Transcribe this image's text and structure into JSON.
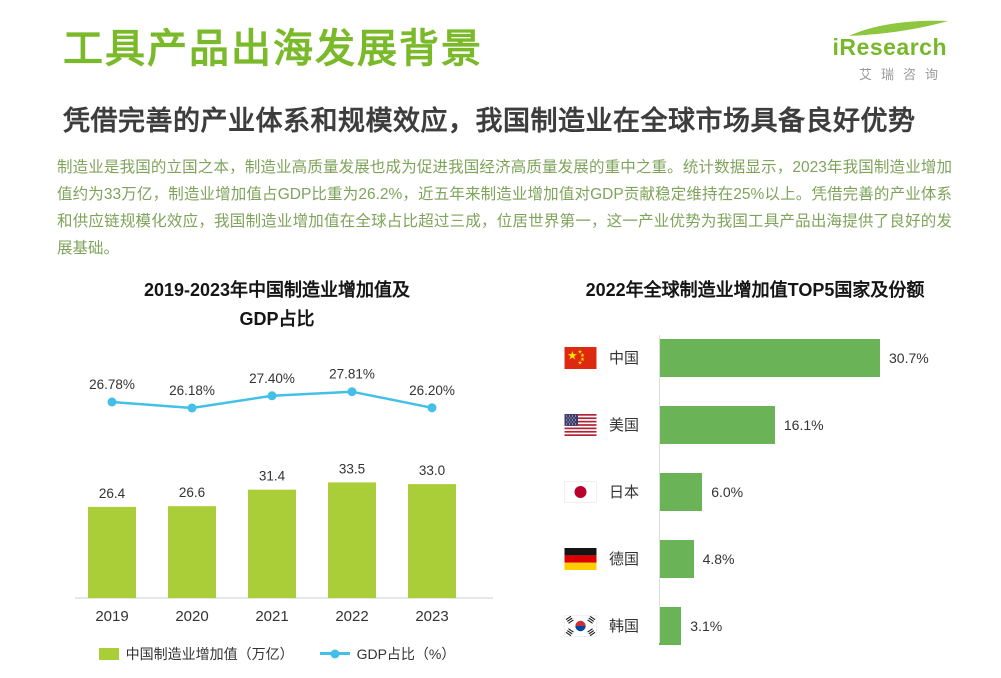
{
  "page": {
    "title": "工具产品出海发展背景",
    "subtitle": "凭借完善的产业体系和规模效应，我国制造业在全球市场具备良好优势",
    "body": "制造业是我国的立国之本，制造业高质量发展也成为促进我国经济高质量发展的重中之重。统计数据显示，2023年我国制造业增加值约为33万亿，制造业增加值占GDP比重为26.2%，近五年来制造业增加值对GDP贡献稳定维持在25%以上。凭借完善的产业体系和供应链规模化效应，我国制造业增加值在全球占比超过三成，位居世界第一，这一产业优势为我国工具产品出海提供了良好的发展基础。"
  },
  "logo": {
    "name": "iResearch",
    "subtitle": "艾瑞咨询"
  },
  "colors": {
    "brand_green": "#7ab929",
    "bar_lime": "#a9ce38",
    "line_cyan": "#43bfe8",
    "bar_green": "#6ab357",
    "body_text_green": "#7fa35a",
    "heading_dark": "#3d3d3d"
  },
  "chart_data": [
    {
      "type": "bar",
      "subtype": "bar+line combo",
      "title": "2019-2023年中国制造业增加值及GDP占比",
      "title_lines": [
        "2019-2023年中国制造业增加值及",
        "GDP占比"
      ],
      "categories": [
        "2019",
        "2020",
        "2021",
        "2022",
        "2023"
      ],
      "series": [
        {
          "name": "中国制造业增加值（万亿）",
          "kind": "bar",
          "values": [
            26.4,
            26.6,
            31.4,
            33.5,
            33.0
          ],
          "labels": [
            "26.4",
            "26.6",
            "31.4",
            "33.5",
            "33.0"
          ],
          "color": "#a9ce38"
        },
        {
          "name": "GDP占比（%）",
          "kind": "line",
          "values": [
            26.78,
            26.18,
            27.4,
            27.81,
            26.2
          ],
          "labels": [
            "26.78%",
            "26.18%",
            "27.40%",
            "27.81%",
            "26.20%"
          ],
          "color": "#43bfe8"
        }
      ],
      "xlabel": "",
      "ylabel": "",
      "legend_position": "bottom",
      "grid": false
    },
    {
      "type": "bar",
      "orientation": "horizontal",
      "title": "2022年全球制造业增加值TOP5国家及份额",
      "categories": [
        "中国",
        "美国",
        "日本",
        "德国",
        "韩国"
      ],
      "values": [
        30.7,
        16.1,
        6.0,
        4.8,
        3.1
      ],
      "rows": [
        {
          "country": "中国",
          "flag": "flag-china-icon",
          "value": 30.7,
          "label": "30.7%"
        },
        {
          "country": "美国",
          "flag": "flag-usa-icon",
          "value": 16.1,
          "label": "16.1%"
        },
        {
          "country": "日本",
          "flag": "flag-japan-icon",
          "value": 6.0,
          "label": "6.0%"
        },
        {
          "country": "德国",
          "flag": "flag-germany-icon",
          "value": 4.8,
          "label": "4.8%"
        },
        {
          "country": "韩国",
          "flag": "flag-korea-icon",
          "value": 3.1,
          "label": "3.1%"
        }
      ],
      "bar_color": "#6ab357",
      "xlim": [
        0,
        33
      ],
      "grid": false,
      "legend_position": "none"
    }
  ]
}
